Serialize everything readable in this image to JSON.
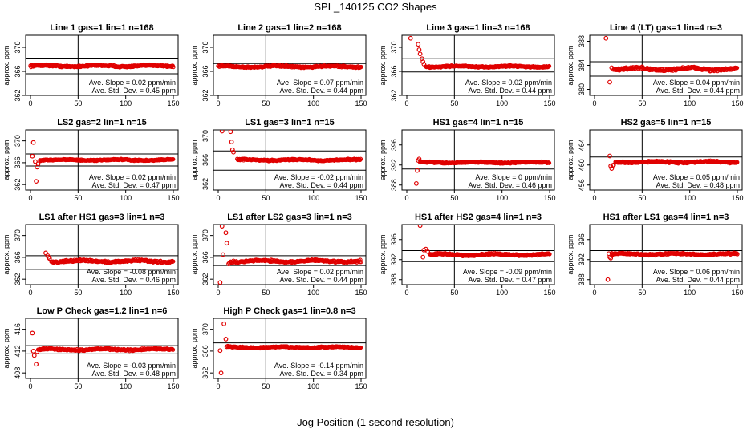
{
  "title": "SPL_140125  CO2 Shapes",
  "xlabel": "Jog Position (1 second resolution)",
  "chart_data": [
    {
      "type": "scatter",
      "title": "Line 1 gas=1 lin=1 n=168",
      "ylabel": "approx. ppm",
      "xlim": [
        0,
        150
      ],
      "ylim": [
        362,
        372
      ],
      "yticks": [
        362,
        366,
        370
      ],
      "xticks": [
        0,
        50,
        100,
        150
      ],
      "hlines": [
        368.2,
        365.6
      ],
      "vline": 50,
      "base": 366.9,
      "noise": 0.18,
      "start": 0,
      "early": [],
      "slope": "Ave. Slope =  0.02  ppm/min",
      "std": "Ave. Std. Dev. =  0.45  ppm"
    },
    {
      "type": "scatter",
      "title": "Line 2 gas=1 lin=2 n=168",
      "ylabel": "approx. ppm",
      "xlim": [
        0,
        150
      ],
      "ylim": [
        362,
        372
      ],
      "yticks": [
        362,
        366,
        370
      ],
      "xticks": [
        0,
        50,
        100,
        150
      ],
      "hlines": [
        367.3
      ],
      "vline": 50,
      "base": 366.8,
      "noise": 0.18,
      "start": 0,
      "early": [],
      "slope": "Ave. Slope =  0.07  ppm/min",
      "std": "Ave. Std. Dev. =  0.44  ppm"
    },
    {
      "type": "scatter",
      "title": "Line 3 gas=1 lin=3 n=168",
      "ylabel": "approx. ppm",
      "xlim": [
        0,
        150
      ],
      "ylim": [
        362,
        372
      ],
      "yticks": [
        362,
        366,
        370
      ],
      "xticks": [
        0,
        50,
        100,
        150
      ],
      "hlines": [
        368.1,
        365.9
      ],
      "vline": 50,
      "base": 366.8,
      "noise": 0.15,
      "start": 20,
      "early": [
        [
          4,
          371.5
        ],
        [
          12,
          370.5
        ],
        [
          13,
          369.6
        ],
        [
          14,
          368.9
        ],
        [
          16,
          368.1
        ],
        [
          17,
          367.6
        ],
        [
          18,
          367.2
        ]
      ],
      "slope": "Ave. Slope =  0.02  ppm/min",
      "std": "Ave. Std. Dev. =  0.44  ppm"
    },
    {
      "type": "scatter",
      "title": "Line 4 (LT) gas=1 lin=4 n=3",
      "ylabel": "approx. ppm",
      "xlim": [
        0,
        150
      ],
      "ylim": [
        379,
        389
      ],
      "yticks": [
        380,
        384,
        388
      ],
      "xticks": [
        0,
        50,
        100,
        150
      ],
      "hlines": [
        384.6,
        382.2
      ],
      "vline": 50,
      "base": 383.4,
      "noise": 0.3,
      "start": 20,
      "early": [
        [
          12,
          388.5
        ],
        [
          16,
          381.2
        ],
        [
          18,
          383.6
        ]
      ],
      "slope": "Ave. Slope =  0.04  ppm/min",
      "std": "Ave. Std. Dev. =  0.44  ppm"
    },
    {
      "type": "scatter",
      "title": "LS2 gas=2 lin=1 n=15",
      "ylabel": "approx. ppm",
      "xlim": [
        0,
        150
      ],
      "ylim": [
        361,
        372
      ],
      "yticks": [
        362,
        366,
        370
      ],
      "xticks": [
        0,
        50,
        100,
        150
      ],
      "hlines": [
        367.6,
        365.4
      ],
      "vline": 50,
      "base": 366.5,
      "noise": 0.15,
      "start": 10,
      "early": [
        [
          2,
          367.2
        ],
        [
          3,
          369.7
        ],
        [
          5,
          366.2
        ],
        [
          6,
          362.6
        ],
        [
          7,
          365.2
        ],
        [
          8,
          365.8
        ]
      ],
      "slope": "Ave. Slope =  0.02  ppm/min",
      "std": "Ave. Std. Dev. =  0.47  ppm"
    },
    {
      "type": "scatter",
      "title": "LS1 gas=3 lin=1 n=15",
      "ylabel": "approx. ppm",
      "xlim": [
        0,
        150
      ],
      "ylim": [
        361,
        371
      ],
      "yticks": [
        362,
        366,
        370
      ],
      "xticks": [
        0,
        50,
        100,
        150
      ],
      "hlines": [
        367.5,
        364.3
      ],
      "vline": 50,
      "base": 366.0,
      "noise": 0.15,
      "start": 20,
      "early": [
        [
          4,
          370.8
        ],
        [
          13,
          370.7
        ],
        [
          14,
          369.0
        ],
        [
          15,
          367.7
        ],
        [
          16,
          367.3
        ]
      ],
      "slope": "Ave. Slope =  -0.02  ppm/min",
      "std": "Ave. Std. Dev. =  0.44  ppm"
    },
    {
      "type": "scatter",
      "title": "HS1 gas=4 lin=1 n=15",
      "ylabel": "approx. ppm",
      "xlim": [
        0,
        150
      ],
      "ylim": [
        387,
        399
      ],
      "yticks": [
        388,
        392,
        396
      ],
      "xticks": [
        0,
        50,
        100,
        150
      ],
      "hlines": [
        393.8,
        391.2
      ],
      "vline": 50,
      "base": 392.5,
      "noise": 0.15,
      "start": 14,
      "early": [
        [
          10,
          388.3
        ],
        [
          11,
          390.9
        ],
        [
          12,
          392.9
        ],
        [
          13,
          393.2
        ]
      ],
      "slope": "Ave. Slope =  0  ppm/min",
      "std": "Ave. Std. Dev. =  0.46  ppm"
    },
    {
      "type": "scatter",
      "title": "HS2 gas=5 lin=1 n=15",
      "ylabel": "approx. ppm",
      "xlim": [
        0,
        150
      ],
      "ylim": [
        455,
        467
      ],
      "yticks": [
        456,
        460,
        464
      ],
      "xticks": [
        0,
        50,
        100,
        150
      ],
      "hlines": [
        461.6,
        459.4
      ],
      "vline": 50,
      "base": 460.6,
      "noise": 0.2,
      "start": 22,
      "early": [
        [
          16,
          461.8
        ],
        [
          17,
          459.8
        ],
        [
          18,
          459.3
        ],
        [
          19,
          459.9
        ],
        [
          20,
          460.0
        ]
      ],
      "slope": "Ave. Slope =  0.05  ppm/min",
      "std": "Ave. Std. Dev. =  0.48  ppm"
    },
    {
      "type": "scatter",
      "title": "LS1 after HS1 gas=3 lin=1 n=3",
      "ylabel": "approx. ppm",
      "xlim": [
        0,
        150
      ],
      "ylim": [
        361,
        372
      ],
      "yticks": [
        362,
        366,
        370
      ],
      "xticks": [
        0,
        50,
        100,
        150
      ],
      "hlines": [
        366.3,
        363.8
      ],
      "vline": 50,
      "base": 365.3,
      "noise": 0.25,
      "start": 22,
      "early": [
        [
          16,
          366.8
        ],
        [
          18,
          366.3
        ],
        [
          19,
          366.0
        ],
        [
          20,
          365.8
        ]
      ],
      "slope": "Ave. Slope =  -0.08  ppm/min",
      "std": "Ave. Std. Dev. =  0.46  ppm"
    },
    {
      "type": "scatter",
      "title": "LS1 after LS2 gas=3 lin=1 n=3",
      "ylabel": "approx. ppm",
      "xlim": [
        0,
        150
      ],
      "ylim": [
        361,
        372
      ],
      "yticks": [
        362,
        366,
        370
      ],
      "xticks": [
        0,
        50,
        100,
        150
      ],
      "hlines": [
        366.3,
        364.5
      ],
      "vline": 50,
      "base": 365.3,
      "noise": 0.25,
      "start": 13,
      "early": [
        [
          2,
          361.4
        ],
        [
          4,
          371.7
        ],
        [
          5,
          366.5
        ],
        [
          8,
          370.5
        ],
        [
          9,
          368.6
        ],
        [
          11,
          364.8
        ],
        [
          12,
          365.0
        ]
      ],
      "slope": "Ave. Slope =  0.02  ppm/min",
      "std": "Ave. Std. Dev. =  0.44  ppm"
    },
    {
      "type": "scatter",
      "title": "HS1 after HS2 gas=4 lin=1 n=3",
      "ylabel": "approx. ppm",
      "xlim": [
        0,
        150
      ],
      "ylim": [
        387,
        399
      ],
      "yticks": [
        388,
        392,
        396
      ],
      "xticks": [
        0,
        50,
        100,
        150
      ],
      "hlines": [
        393.8,
        391.6
      ],
      "vline": 50,
      "base": 393.0,
      "noise": 0.22,
      "start": 24,
      "early": [
        [
          14,
          398.8
        ],
        [
          17,
          392.5
        ],
        [
          18,
          393.9
        ],
        [
          20,
          394.1
        ],
        [
          22,
          393.6
        ]
      ],
      "slope": "Ave. Slope =  -0.09  ppm/min",
      "std": "Ave. Std. Dev. =  0.47  ppm"
    },
    {
      "type": "scatter",
      "title": "HS1 after LS1 gas=4 lin=1 n=3",
      "ylabel": "approx. ppm",
      "xlim": [
        0,
        150
      ],
      "ylim": [
        387,
        399
      ],
      "yticks": [
        388,
        392,
        396
      ],
      "xticks": [
        0,
        50,
        100,
        150
      ],
      "hlines": [
        393.8,
        391.6
      ],
      "vline": 50,
      "base": 393.1,
      "noise": 0.2,
      "start": 18,
      "early": [
        [
          14,
          388.0
        ],
        [
          15,
          393.2
        ],
        [
          16,
          392.5
        ],
        [
          17,
          392.3
        ]
      ],
      "slope": "Ave. Slope =  0.06  ppm/min",
      "std": "Ave. Std. Dev. =  0.44  ppm"
    },
    {
      "type": "scatter",
      "title": "Low P Check gas=1.2 lin=1 n=6",
      "ylabel": "approx. ppm",
      "xlim": [
        0,
        150
      ],
      "ylim": [
        407,
        418
      ],
      "yticks": [
        408,
        412,
        416
      ],
      "xticks": [
        0,
        50,
        100,
        150
      ],
      "hlines": [
        413.0,
        411.5
      ],
      "vline": 50,
      "base": 412.3,
      "noise": 0.2,
      "start": 8,
      "early": [
        [
          2,
          415.3
        ],
        [
          3,
          412.0
        ],
        [
          4,
          411.2
        ],
        [
          6,
          409.6
        ],
        [
          7,
          411.9
        ]
      ],
      "slope": "Ave. Slope =  -0.03  ppm/min",
      "std": "Ave. Std. Dev. =  0.48  ppm"
    },
    {
      "type": "scatter",
      "title": "High P Check gas=1 lin=0.8 n=3",
      "ylabel": "approx. ppm",
      "xlim": [
        0,
        150
      ],
      "ylim": [
        361,
        372
      ],
      "yticks": [
        362,
        366,
        370
      ],
      "xticks": [
        0,
        50,
        100,
        150
      ],
      "hlines": [
        367.5
      ],
      "vline": 50,
      "base": 366.7,
      "noise": 0.15,
      "start": 11,
      "early": [
        [
          2,
          366.1
        ],
        [
          3,
          362.0
        ],
        [
          6,
          371.0
        ],
        [
          8,
          368.2
        ],
        [
          9,
          366.8
        ],
        [
          10,
          366.9
        ]
      ],
      "slope": "Ave. Slope =  -0.14  ppm/min",
      "std": "Ave. Std. Dev. =  0.34  ppm"
    }
  ]
}
